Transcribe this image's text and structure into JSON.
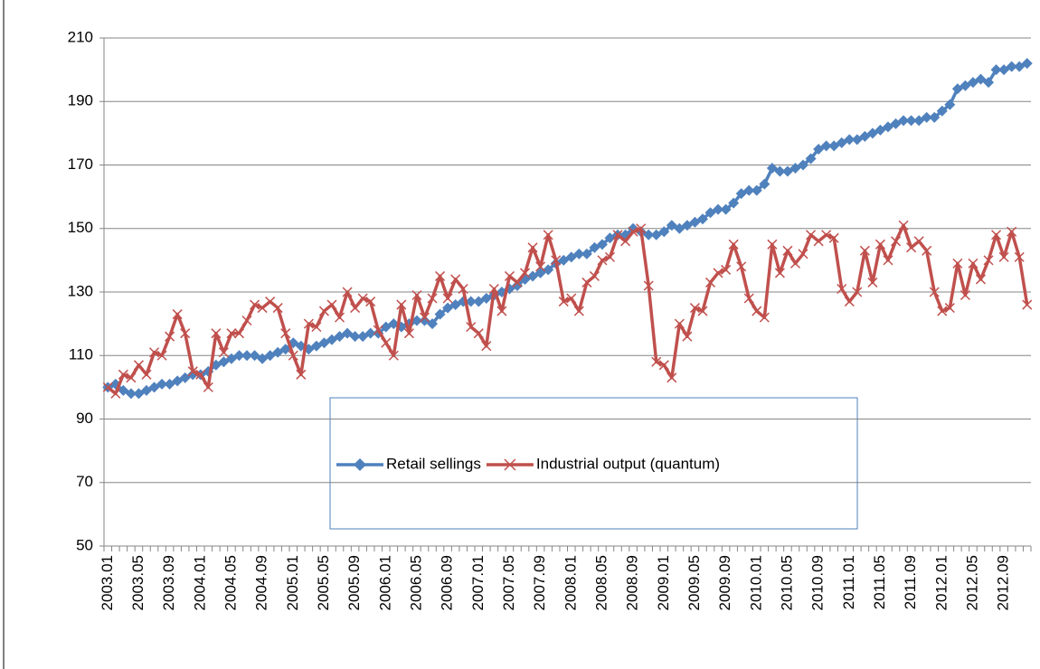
{
  "chart_data": {
    "type": "line",
    "categories": [
      "2003.01",
      null,
      null,
      null,
      "2003.05",
      null,
      null,
      null,
      "2003.09",
      null,
      null,
      null,
      "2004.01",
      null,
      null,
      null,
      "2004.05",
      null,
      null,
      null,
      "2004.09",
      null,
      null,
      null,
      "2005.01",
      null,
      null,
      null,
      "2005.05",
      null,
      null,
      null,
      "2005.09",
      null,
      null,
      null,
      "2006.01",
      null,
      null,
      null,
      "2006.05",
      null,
      null,
      null,
      "2006.09",
      null,
      null,
      null,
      "2007.01",
      null,
      null,
      null,
      "2007.05",
      null,
      null,
      null,
      "2007.09",
      null,
      null,
      null,
      "2008.01",
      null,
      null,
      null,
      "2008.05",
      null,
      null,
      null,
      "2008.09",
      null,
      null,
      null,
      "2009.01",
      null,
      null,
      null,
      "2009.05",
      null,
      null,
      null,
      "2009.09",
      null,
      null,
      null,
      "2010.01",
      null,
      null,
      null,
      "2010.05",
      null,
      null,
      null,
      "2010.09",
      null,
      null,
      null,
      "2011.01",
      null,
      null,
      null,
      "2011.05",
      null,
      null,
      null,
      "2011.09",
      null,
      null,
      null,
      "2012.01",
      null,
      null,
      null,
      "2012.05",
      null,
      null,
      null,
      "2012.09",
      null,
      null,
      null
    ],
    "series": [
      {
        "name": "Retail sellings",
        "color": "#4f81bd",
        "marker": "diamond",
        "values": [
          100,
          101,
          99,
          98,
          98,
          99,
          100,
          101,
          101,
          102,
          103,
          104,
          104,
          105,
          107,
          108,
          109,
          110,
          110,
          110,
          109,
          110,
          111,
          112,
          114,
          113,
          112,
          113,
          114,
          115,
          116,
          117,
          116,
          116,
          117,
          117,
          119,
          120,
          119,
          120,
          121,
          121,
          120,
          123,
          125,
          126,
          127,
          127,
          127,
          128,
          129,
          130,
          131,
          132,
          134,
          135,
          136,
          137,
          139,
          140,
          141,
          142,
          142,
          144,
          145,
          147,
          148,
          148,
          150,
          149,
          148,
          148,
          149,
          151,
          150,
          151,
          152,
          153,
          155,
          156,
          156,
          158,
          161,
          162,
          162,
          164,
          169,
          168,
          168,
          169,
          170,
          172,
          175,
          176,
          176,
          177,
          178,
          178,
          179,
          180,
          181,
          182,
          183,
          184,
          184,
          184,
          185,
          185,
          187,
          189,
          194,
          195,
          196,
          197,
          196,
          200,
          200,
          201,
          201,
          202
        ]
      },
      {
        "name": "Industrial output (quantum)",
        "color": "#c0504d",
        "marker": "x",
        "values": [
          100,
          98,
          104,
          103,
          107,
          104,
          111,
          110,
          116,
          123,
          117,
          105,
          104,
          100,
          117,
          111,
          117,
          117,
          121,
          126,
          125,
          127,
          125,
          117,
          110,
          104,
          120,
          119,
          124,
          126,
          122,
          130,
          125,
          128,
          127,
          118,
          114,
          110,
          126,
          117,
          129,
          122,
          128,
          135,
          128,
          134,
          131,
          119,
          117,
          113,
          131,
          124,
          135,
          133,
          136,
          144,
          138,
          148,
          140,
          127,
          128,
          124,
          133,
          135,
          140,
          141,
          148,
          146,
          149,
          150,
          132,
          108,
          107,
          103,
          120,
          116,
          125,
          124,
          133,
          136,
          137,
          145,
          138,
          128,
          124,
          122,
          145,
          136,
          143,
          139,
          142,
          148,
          146,
          148,
          147,
          131,
          127,
          130,
          143,
          133,
          145,
          140,
          146,
          151,
          144,
          146,
          143,
          130,
          124,
          125,
          139,
          129,
          139,
          134,
          140,
          148,
          141,
          149,
          141,
          126
        ]
      }
    ],
    "ylim": [
      50,
      210
    ],
    "yticks": [
      50,
      70,
      90,
      110,
      130,
      150,
      170,
      190,
      210
    ],
    "grid": true
  }
}
